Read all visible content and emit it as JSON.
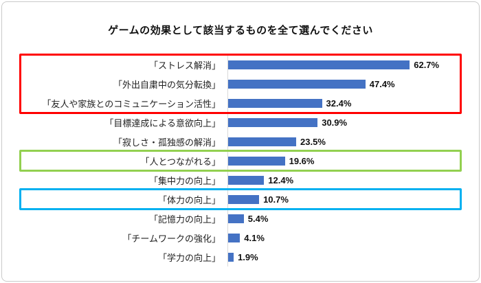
{
  "title": "ゲームの効果として該当するものを全て選んでください",
  "chart_data": {
    "type": "bar",
    "orientation": "horizontal",
    "title": "ゲームの効果として該当するものを全て選んでください",
    "xlabel": "",
    "ylabel": "",
    "xlim": [
      0,
      70
    ],
    "grid": false,
    "legend": "none",
    "bar_color": "#4472C4",
    "categories": [
      "「ストレス解消」",
      "「外出自粛中の気分転換」",
      "「友人や家族とのコミュニケーション活性」",
      "「目標達成による意欲向上」",
      "「寂しさ・孤独感の解消」",
      "「人とつながれる」",
      "「集中力の向上」",
      "「体力の向上」",
      "「記憶力の向上」",
      "「チームワークの強化」",
      "「学力の向上」"
    ],
    "values": [
      62.7,
      47.4,
      32.4,
      30.9,
      23.5,
      19.6,
      12.4,
      10.7,
      5.4,
      4.1,
      1.9
    ],
    "value_suffix": "%",
    "highlights": [
      {
        "start_row": 0,
        "end_row": 2,
        "color": "#FF0000",
        "label": "red-highlight-box"
      },
      {
        "start_row": 5,
        "end_row": 5,
        "color": "#92D050",
        "label": "green-highlight-box"
      },
      {
        "start_row": 7,
        "end_row": 7,
        "color": "#00B0F0",
        "label": "blue-highlight-box"
      }
    ]
  }
}
